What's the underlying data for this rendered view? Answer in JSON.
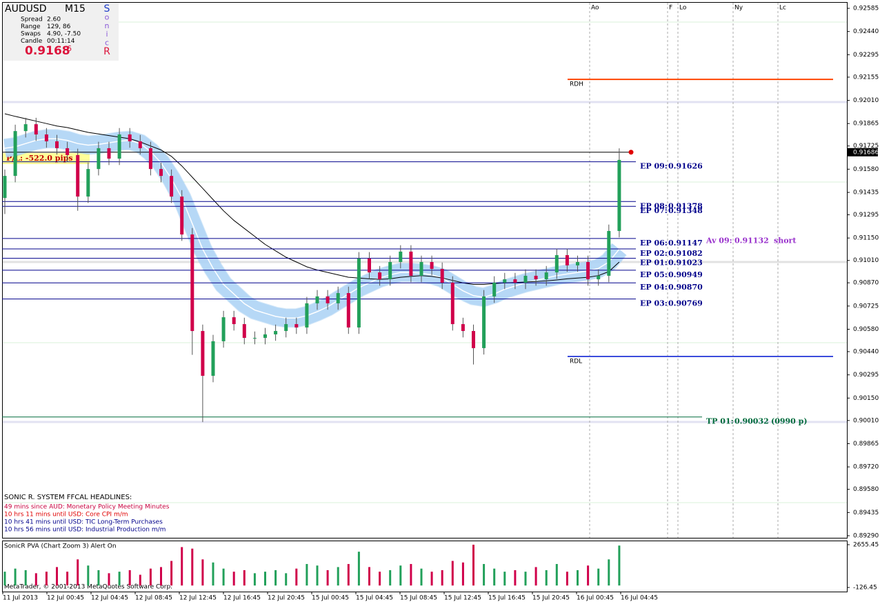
{
  "chart_data": {
    "type": "candlestick",
    "symbol": "AUDUSD",
    "timeframe": "M15",
    "info": {
      "labels": [
        "Spread",
        "Range",
        "Swaps",
        "Candle"
      ],
      "values": [
        "2.60",
        "129, 86",
        "4.90, -7.50",
        "00:11:14"
      ]
    },
    "bid_main": "0.9168",
    "bid_last": "6",
    "sonic": [
      "S",
      "o",
      "n",
      "i",
      "c",
      "R"
    ],
    "pl_label": "P/L:  -522.0  pips",
    "up_color": "#22a05a",
    "down_color": "#d0004a",
    "open": [
      0.914,
      0.91538,
      0.91818,
      0.91861,
      0.91797,
      0.91754,
      0.91711,
      0.91668,
      0.91409,
      0.91581,
      0.91711,
      0.91646,
      0.91797,
      0.91754,
      0.91711,
      0.91581,
      0.91538,
      0.91409,
      0.91172,
      0.90569,
      0.90289,
      0.90505,
      0.90655,
      0.90612,
      0.90526,
      0.90526,
      0.90548,
      0.90569,
      0.90612,
      0.90591,
      0.90742,
      0.90785,
      0.90742,
      0.90806,
      0.90591,
      0.91022,
      0.90935,
      0.90892,
      0.91,
      0.91065,
      0.90914,
      0.91,
      0.90957,
      0.90871,
      0.90612,
      0.90569,
      0.90462,
      0.90785,
      0.90871,
      0.90892,
      0.90871,
      0.90914,
      0.90892,
      0.90935,
      0.91043,
      0.90979,
      0.91,
      0.90892,
      0.90914,
      0.91194
    ],
    "high": [
      0.91578,
      0.91858,
      0.91901,
      0.91901,
      0.91837,
      0.91794,
      0.91751,
      0.91708,
      0.91621,
      0.91751,
      0.91751,
      0.91837,
      0.91837,
      0.91794,
      0.91751,
      0.91621,
      0.91578,
      0.91449,
      0.91212,
      0.90609,
      0.90545,
      0.90695,
      0.90695,
      0.90652,
      0.90566,
      0.90588,
      0.90609,
      0.90652,
      0.90652,
      0.90782,
      0.90825,
      0.90825,
      0.90846,
      0.90846,
      0.91062,
      0.91062,
      0.90975,
      0.9104,
      0.91105,
      0.91105,
      0.9104,
      0.9104,
      0.90997,
      0.90911,
      0.90652,
      0.90609,
      0.90825,
      0.90911,
      0.90932,
      0.90932,
      0.90954,
      0.90954,
      0.90975,
      0.91083,
      0.91083,
      0.9104,
      0.9104,
      0.90954,
      0.91234,
      0.9171
    ],
    "low": [
      0.913,
      0.91498,
      0.91778,
      0.91757,
      0.91714,
      0.91671,
      0.91628,
      0.9132,
      0.91369,
      0.91541,
      0.91606,
      0.91606,
      0.91714,
      0.91671,
      0.91541,
      0.91498,
      0.91369,
      0.91132,
      0.9042,
      0.9,
      0.90249,
      0.90465,
      0.90572,
      0.90486,
      0.90486,
      0.90486,
      0.90508,
      0.90529,
      0.90551,
      0.90551,
      0.90702,
      0.90702,
      0.90702,
      0.90551,
      0.90551,
      0.90895,
      0.90852,
      0.90852,
      0.9096,
      0.90874,
      0.90874,
      0.90917,
      0.90831,
      0.90572,
      0.90529,
      0.9036,
      0.90422,
      0.90745,
      0.90831,
      0.90831,
      0.90831,
      0.90852,
      0.90852,
      0.90895,
      0.90939,
      0.90939,
      0.90852,
      0.90852,
      0.90874,
      0.91154
    ],
    "close": [
      0.91538,
      0.91818,
      0.91861,
      0.91797,
      0.91754,
      0.91711,
      0.91668,
      0.91409,
      0.91581,
      0.91711,
      0.91646,
      0.91797,
      0.91754,
      0.91711,
      0.91581,
      0.91538,
      0.91409,
      0.91172,
      0.90569,
      0.90289,
      0.90505,
      0.90655,
      0.90612,
      0.90526,
      0.90526,
      0.90548,
      0.90569,
      0.90612,
      0.90591,
      0.90742,
      0.90785,
      0.90742,
      0.90806,
      0.90591,
      0.91022,
      0.90935,
      0.90892,
      0.91,
      0.91065,
      0.90914,
      0.91,
      0.90957,
      0.90871,
      0.90612,
      0.90569,
      0.90462,
      0.90785,
      0.90871,
      0.90892,
      0.90871,
      0.90914,
      0.90892,
      0.90935,
      0.91043,
      0.90979,
      0.91,
      0.90892,
      0.90914,
      0.91194,
      0.91638
    ],
    "ma_slow": {
      "color": "#000000",
      "values": [
        0.91926,
        0.9191,
        0.91895,
        0.9188,
        0.91865,
        0.9185,
        0.9184,
        0.91825,
        0.9181,
        0.918,
        0.9179,
        0.9178,
        0.9177,
        0.9175,
        0.91725,
        0.917,
        0.9166,
        0.916,
        0.9153,
        0.9146,
        0.9139,
        0.9132,
        0.9126,
        0.9121,
        0.9116,
        0.9111,
        0.9107,
        0.9103,
        0.91,
        0.9097,
        0.9095,
        0.90935,
        0.9092,
        0.90905,
        0.909,
        0.90895,
        0.90892,
        0.90895,
        0.90905,
        0.9091,
        0.90915,
        0.9091,
        0.909,
        0.90885,
        0.9087,
        0.9086,
        0.9086,
        0.90865,
        0.9087,
        0.90872,
        0.90875,
        0.90878,
        0.90882,
        0.90888,
        0.90895,
        0.909,
        0.90905,
        0.90915,
        0.9094,
        0.91
      ]
    },
    "ma_fast": {
      "color": "#5aa8e8",
      "values": [
        0.91711,
        0.9172,
        0.9174,
        0.9176,
        0.9177,
        0.9177,
        0.9176,
        0.9174,
        0.9173,
        0.91735,
        0.91745,
        0.91755,
        0.9176,
        0.9174,
        0.9169,
        0.9162,
        0.9152,
        0.914,
        0.9124,
        0.9108,
        0.9096,
        0.9086,
        0.908,
        0.9074,
        0.907,
        0.9068,
        0.9066,
        0.9065,
        0.9065,
        0.90665,
        0.9069,
        0.9072,
        0.9076,
        0.908,
        0.9084,
        0.9087,
        0.909,
        0.9092,
        0.90935,
        0.90935,
        0.9093,
        0.9092,
        0.909,
        0.9086,
        0.9082,
        0.9079,
        0.9078,
        0.908,
        0.9083,
        0.9085,
        0.9087,
        0.90885,
        0.909,
        0.90915,
        0.90925,
        0.90935,
        0.90945,
        0.9096,
        0.91,
        0.9108
      ]
    },
    "current_price": 0.91686,
    "levels": [
      {
        "name": "EP 09:",
        "value": 0.91626
      },
      {
        "name": "EP 08:",
        "value": 0.91378
      },
      {
        "name": "EP 07:",
        "value": 0.91348
      },
      {
        "name": "EP 06:",
        "value": 0.91147
      },
      {
        "name": "EP 02:",
        "value": 0.91082
      },
      {
        "name": "EP 01:",
        "value": 0.91023
      },
      {
        "name": "EP 05:",
        "value": 0.90949
      },
      {
        "name": "EP 04:",
        "value": 0.9087,
        "value_label": "0.90870"
      },
      {
        "name": "EP 03:",
        "value": 0.90769
      }
    ],
    "levels_color": "#00008b",
    "average": {
      "name": "Av 09:",
      "value": 0.91132,
      "side": "short",
      "color": "#9932cc"
    },
    "tp": {
      "name": "TP 01:",
      "value": 0.90032,
      "note": "(0990 p)",
      "color": "#006b3c"
    },
    "rdh": {
      "name": "RDH",
      "value": 0.92141,
      "color": "#ff4500"
    },
    "rdl": {
      "name": "RDL",
      "value": 0.9041,
      "color": "#3b4bdc"
    },
    "sessions": [
      "Ao",
      "F",
      "Lo",
      "Ny",
      "Lc"
    ],
    "time_labels": [
      "11 Jul 2013",
      "12 Jul 00:45",
      "12 Jul 04:45",
      "12 Jul 08:45",
      "12 Jul 12:45",
      "12 Jul 16:45",
      "12 Jul 20:45",
      "15 Jul 00:45",
      "15 Jul 04:45",
      "15 Jul 08:45",
      "15 Jul 12:45",
      "15 Jul 16:45",
      "15 Jul 20:45",
      "16 Jul 00:45",
      "16 Jul 04:45"
    ],
    "ylim": [
      0.89277,
      0.92624
    ],
    "grid": false,
    "yticks": [
      {
        "value": 0.92585,
        "label": "0.92585"
      },
      {
        "value": 0.9244,
        "label": "0.92440"
      },
      {
        "value": 0.92295,
        "label": "0.92295"
      },
      {
        "value": 0.92155,
        "label": "0.92155"
      },
      {
        "value": 0.9201,
        "label": "0.92010"
      },
      {
        "value": 0.91865,
        "label": "0.91865"
      },
      {
        "value": 0.91725,
        "label": "0.91725"
      },
      {
        "value": 0.9158,
        "label": "0.91580"
      },
      {
        "value": 0.91435,
        "label": "0.91435"
      },
      {
        "value": 0.91295,
        "label": "0.91295"
      },
      {
        "value": 0.9115,
        "label": "0.91150"
      },
      {
        "value": 0.9101,
        "label": "0.91010"
      },
      {
        "value": 0.9087,
        "label": "0.90870"
      },
      {
        "value": 0.90725,
        "label": "0.90725"
      },
      {
        "value": 0.9058,
        "label": "0.90580"
      },
      {
        "value": 0.9044,
        "label": "0.90440"
      },
      {
        "value": 0.90295,
        "label": "0.90295"
      },
      {
        "value": 0.9015,
        "label": "0.90150"
      },
      {
        "value": 0.9001,
        "label": "0.90010"
      },
      {
        "value": 0.89865,
        "label": "0.89865"
      },
      {
        "value": 0.8972,
        "label": "0.89720"
      },
      {
        "value": 0.8958,
        "label": "0.89580"
      },
      {
        "value": 0.89435,
        "label": "0.89435"
      },
      {
        "value": 0.8929,
        "label": "0.89290"
      }
    ],
    "headlines_title": "SONIC R. SYSTEM  FFCAL HEADLINES:",
    "headlines": [
      {
        "text": "49 mins since AUD: Monetary Policy Meeting Minutes",
        "color": "#c8003c"
      },
      {
        "text": "10 hrs 11 mins until USD: Core CPI m/m",
        "color": "#e00000"
      },
      {
        "text": "10 hrs 41 mins until USD: TIC Long-Term Purchases",
        "color": "#00008b"
      },
      {
        "text": "10 hrs 56 mins until USD: Industrial Production m/m",
        "color": "#00008b"
      }
    ],
    "volume": {
      "title": "SonicR PVA  (Chart Zoom 3)  Alert On",
      "values": [
        900,
        1100,
        1000,
        800,
        900,
        1200,
        900,
        1700,
        1300,
        1000,
        800,
        900,
        1000,
        700,
        1100,
        1200,
        1600,
        2500,
        2400,
        1700,
        1500,
        1100,
        900,
        1000,
        800,
        900,
        1000,
        800,
        1100,
        1400,
        1300,
        1000,
        1200,
        1400,
        2200,
        1200,
        900,
        1000,
        1300,
        1400,
        1100,
        900,
        1000,
        1600,
        1500,
        2655.45,
        1400,
        1100,
        900,
        1000,
        900,
        1200,
        1000,
        1400,
        900,
        1000,
        1300,
        1100,
        1700,
        2600
      ],
      "ylim": [
        -126.45,
        2655.45
      ],
      "yticks": [
        2655.45,
        -126.45
      ]
    },
    "copyright": "MetaTrader, © 2001-2013 MetaQuotes Software Corp."
  }
}
